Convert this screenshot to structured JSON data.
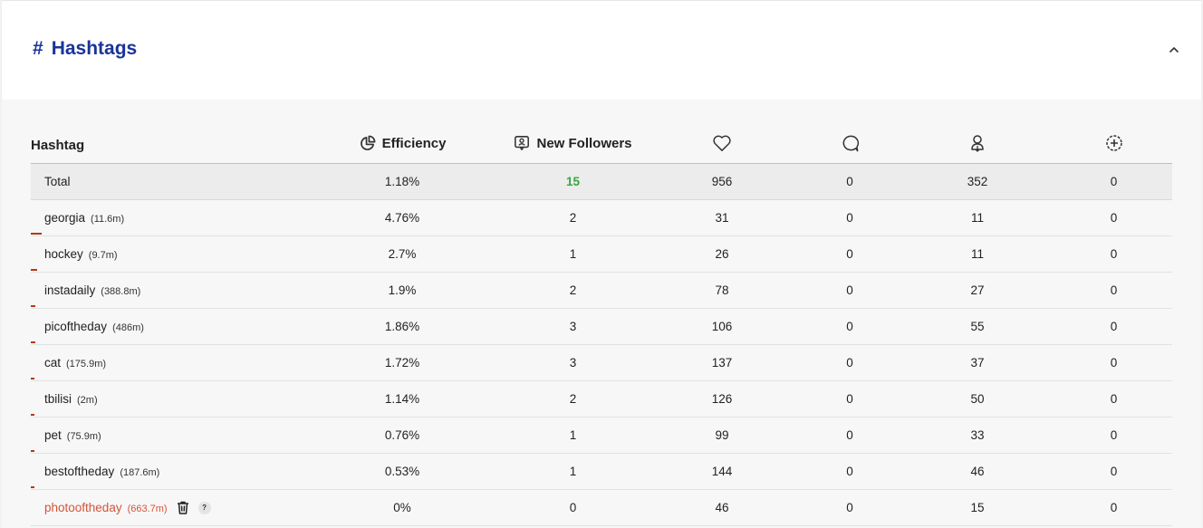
{
  "header": {
    "title": "Hashtags",
    "title_icon": "#"
  },
  "table": {
    "columns": [
      {
        "label": "Hashtag",
        "icon": ""
      },
      {
        "label": "Efficiency",
        "icon": "pie-chart-icon"
      },
      {
        "label": "New Followers",
        "icon": "user-badge-icon"
      },
      {
        "label": "",
        "icon": "heart-icon"
      },
      {
        "label": "",
        "icon": "comment-icon"
      },
      {
        "label": "",
        "icon": "profile-visit-icon"
      },
      {
        "label": "",
        "icon": "plus-circle-icon"
      }
    ],
    "total": {
      "label": "Total",
      "efficiency": "1.18%",
      "new_followers": "15",
      "likes": "956",
      "comments": "0",
      "profile_visits": "352",
      "follows": "0"
    },
    "rows": [
      {
        "tag": "georgia",
        "count": "(11.6m)",
        "efficiency": "4.76%",
        "efficiency_bar": 0.0476,
        "new_followers": "2",
        "likes": "31",
        "comments": "0",
        "profile_visits": "11",
        "follows": "0"
      },
      {
        "tag": "hockey",
        "count": "(9.7m)",
        "efficiency": "2.7%",
        "efficiency_bar": 0.027,
        "new_followers": "1",
        "likes": "26",
        "comments": "0",
        "profile_visits": "11",
        "follows": "0"
      },
      {
        "tag": "instadaily",
        "count": "(388.8m)",
        "efficiency": "1.9%",
        "efficiency_bar": 0.019,
        "new_followers": "2",
        "likes": "78",
        "comments": "0",
        "profile_visits": "27",
        "follows": "0"
      },
      {
        "tag": "picoftheday",
        "count": "(486m)",
        "efficiency": "1.86%",
        "efficiency_bar": 0.0186,
        "new_followers": "3",
        "likes": "106",
        "comments": "0",
        "profile_visits": "55",
        "follows": "0"
      },
      {
        "tag": "cat",
        "count": "(175.9m)",
        "efficiency": "1.72%",
        "efficiency_bar": 0.0172,
        "new_followers": "3",
        "likes": "137",
        "comments": "0",
        "profile_visits": "37",
        "follows": "0"
      },
      {
        "tag": "tbilisi",
        "count": "(2m)",
        "efficiency": "1.14%",
        "efficiency_bar": 0.0114,
        "new_followers": "2",
        "likes": "126",
        "comments": "0",
        "profile_visits": "50",
        "follows": "0"
      },
      {
        "tag": "pet",
        "count": "(75.9m)",
        "efficiency": "0.76%",
        "efficiency_bar": 0.0076,
        "new_followers": "1",
        "likes": "99",
        "comments": "0",
        "profile_visits": "33",
        "follows": "0"
      },
      {
        "tag": "bestoftheday",
        "count": "(187.6m)",
        "efficiency": "0.53%",
        "efficiency_bar": 0.0053,
        "new_followers": "1",
        "likes": "144",
        "comments": "0",
        "profile_visits": "46",
        "follows": "0"
      },
      {
        "tag": "photooftheday",
        "count": "(663.7m)",
        "efficiency": "0%",
        "efficiency_bar": 0,
        "new_followers": "0",
        "likes": "46",
        "comments": "0",
        "profile_visits": "15",
        "follows": "0",
        "flagged": true,
        "help_label": "?"
      }
    ]
  },
  "colors": {
    "title": "#1a3399",
    "positive": "#3aa641",
    "flagged": "#d2553a",
    "bar": "#b2391a"
  }
}
